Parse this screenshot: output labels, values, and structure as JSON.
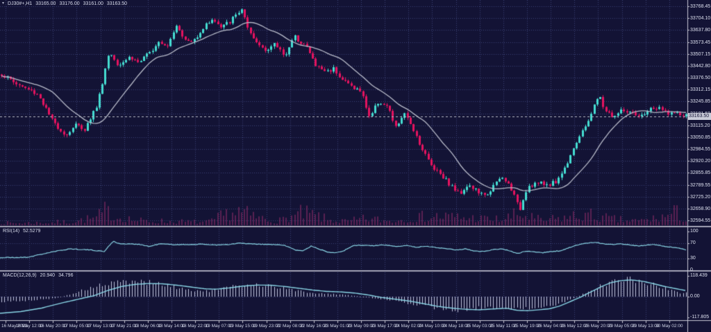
{
  "header": {
    "symbol_timeframe": "DJ30#+,H1",
    "open": "33165.00",
    "high": "33176.00",
    "low": "33161.00",
    "close": "33163.50"
  },
  "colors": {
    "background": "#131335",
    "grid": "#3d4277",
    "separator": "#c9c8d6",
    "up": "#45ddd2",
    "down": "#e4135f",
    "volume": "#a03070",
    "ma": "#b9bcca",
    "cyan": "#8ad6e6",
    "hist": "#c3c7e2",
    "text": "#dfe2ee",
    "price_tag_bg": "#c9cbd8"
  },
  "chart_data": {
    "type": "candlestick",
    "symbol": "DJ30#+",
    "timeframe": "H1",
    "indicators": [
      "Moving Average",
      "RSI(14)",
      "MACD(12,26,9)"
    ],
    "bars_estimated": 232,
    "price_axis": {
      "max": 33768.45,
      "min": 32594.55,
      "labels": [
        "33768.45",
        "33704.10",
        "33637.80",
        "33573.45",
        "33507.15",
        "33442.80",
        "33376.50",
        "33312.15",
        "33245.85",
        "33181.50",
        "33115.20",
        "33050.85",
        "32984.55",
        "32920.20",
        "32855.85",
        "32789.55",
        "32725.20",
        "32658.90",
        "32594.55"
      ],
      "current_price": "33163.50",
      "current_price_value": 33163.5
    },
    "time_axis": [
      "16 May 2023",
      "16 May 12:00",
      "16 May 20:00",
      "17 May 05:00",
      "17 May 13:00",
      "17 May 21:00",
      "18 May 06:00",
      "18 May 14:00",
      "18 May 22:00",
      "19 May 07:00",
      "19 May 15:00",
      "19 May 23:00",
      "22 May 08:00",
      "22 May 16:00",
      "23 May 01:00",
      "23 May 09:00",
      "23 May 17:00",
      "24 May 02:00",
      "24 May 10:00",
      "24 May 18:00",
      "25 May 03:00",
      "25 May 11:00",
      "25 May 19:00",
      "26 May 04:00",
      "26 May 12:00",
      "26 May 20:00",
      "29 May 05:00",
      "29 May 13:00",
      "30 May 02:00"
    ],
    "price_path_anchors": [
      [
        0,
        33400
      ],
      [
        25,
        33340
      ],
      [
        55,
        33285
      ],
      [
        75,
        33140
      ],
      [
        95,
        33060
      ],
      [
        108,
        33120
      ],
      [
        122,
        33095
      ],
      [
        140,
        33230
      ],
      [
        157,
        33520
      ],
      [
        170,
        33450
      ],
      [
        186,
        33490
      ],
      [
        200,
        33460
      ],
      [
        215,
        33510
      ],
      [
        228,
        33580
      ],
      [
        241,
        33555
      ],
      [
        255,
        33680
      ],
      [
        263,
        33590
      ],
      [
        276,
        33570
      ],
      [
        290,
        33640
      ],
      [
        305,
        33700
      ],
      [
        318,
        33650
      ],
      [
        331,
        33685
      ],
      [
        348,
        33755
      ],
      [
        358,
        33620
      ],
      [
        371,
        33560
      ],
      [
        385,
        33530
      ],
      [
        396,
        33560
      ],
      [
        410,
        33500
      ],
      [
        424,
        33600
      ],
      [
        440,
        33555
      ],
      [
        455,
        33440
      ],
      [
        470,
        33410
      ],
      [
        481,
        33430
      ],
      [
        492,
        33370
      ],
      [
        506,
        33330
      ],
      [
        520,
        33300
      ],
      [
        532,
        33160
      ],
      [
        545,
        33250
      ],
      [
        558,
        33215
      ],
      [
        570,
        33100
      ],
      [
        581,
        33180
      ],
      [
        593,
        33115
      ],
      [
        606,
        33000
      ],
      [
        620,
        32900
      ],
      [
        635,
        32850
      ],
      [
        648,
        32790
      ],
      [
        661,
        32740
      ],
      [
        673,
        32790
      ],
      [
        685,
        32760
      ],
      [
        698,
        32725
      ],
      [
        710,
        32780
      ],
      [
        722,
        32830
      ],
      [
        735,
        32780
      ],
      [
        748,
        32650
      ],
      [
        759,
        32780
      ],
      [
        772,
        32800
      ],
      [
        786,
        32790
      ],
      [
        800,
        32805
      ],
      [
        813,
        32880
      ],
      [
        826,
        33000
      ],
      [
        839,
        33080
      ],
      [
        851,
        33180
      ],
      [
        862,
        33280
      ],
      [
        871,
        33200
      ],
      [
        883,
        33160
      ],
      [
        896,
        33200
      ],
      [
        909,
        33180
      ],
      [
        921,
        33155
      ],
      [
        933,
        33200
      ],
      [
        946,
        33210
      ],
      [
        958,
        33190
      ],
      [
        971,
        33180
      ],
      [
        989,
        33163.5
      ]
    ],
    "volume_envelope": [
      [
        0,
        6
      ],
      [
        60,
        7
      ],
      [
        100,
        9
      ],
      [
        140,
        20
      ],
      [
        152,
        38
      ],
      [
        165,
        25
      ],
      [
        200,
        12
      ],
      [
        250,
        10
      ],
      [
        300,
        8
      ],
      [
        340,
        40
      ],
      [
        360,
        26
      ],
      [
        400,
        10
      ],
      [
        430,
        30
      ],
      [
        452,
        28
      ],
      [
        470,
        15
      ],
      [
        500,
        10
      ],
      [
        530,
        18
      ],
      [
        560,
        12
      ],
      [
        600,
        20
      ],
      [
        630,
        25
      ],
      [
        660,
        22
      ],
      [
        690,
        18
      ],
      [
        720,
        15
      ],
      [
        750,
        30
      ],
      [
        780,
        12
      ],
      [
        810,
        20
      ],
      [
        840,
        28
      ],
      [
        862,
        22
      ],
      [
        890,
        14
      ],
      [
        920,
        12
      ],
      [
        950,
        20
      ],
      [
        972,
        34
      ],
      [
        988,
        16
      ]
    ],
    "rsi": {
      "label": "RSI(14)",
      "value": "52.5279",
      "range": [
        0,
        100
      ],
      "levels": [
        70,
        30
      ],
      "ticks": [
        "100",
        "70",
        "30",
        "0"
      ],
      "tick_values": [
        100,
        70,
        30,
        0
      ],
      "anchors": [
        [
          0,
          32
        ],
        [
          40,
          33
        ],
        [
          70,
          45
        ],
        [
          100,
          55
        ],
        [
          130,
          52
        ],
        [
          150,
          48
        ],
        [
          163,
          75
        ],
        [
          172,
          68
        ],
        [
          200,
          67
        ],
        [
          215,
          61
        ],
        [
          230,
          68
        ],
        [
          250,
          66
        ],
        [
          270,
          66
        ],
        [
          290,
          67
        ],
        [
          312,
          65
        ],
        [
          330,
          66
        ],
        [
          345,
          70
        ],
        [
          357,
          68
        ],
        [
          370,
          67
        ],
        [
          395,
          66
        ],
        [
          410,
          64
        ],
        [
          425,
          52
        ],
        [
          437,
          50
        ],
        [
          448,
          62
        ],
        [
          460,
          54
        ],
        [
          472,
          47
        ],
        [
          483,
          45
        ],
        [
          495,
          50
        ],
        [
          510,
          64
        ],
        [
          525,
          64
        ],
        [
          540,
          63
        ],
        [
          555,
          65
        ],
        [
          570,
          61
        ],
        [
          585,
          64
        ],
        [
          600,
          59
        ],
        [
          615,
          62
        ],
        [
          630,
          58
        ],
        [
          645,
          55
        ],
        [
          658,
          52
        ],
        [
          670,
          55
        ],
        [
          682,
          50
        ],
        [
          695,
          48
        ],
        [
          708,
          52
        ],
        [
          720,
          55
        ],
        [
          733,
          51
        ],
        [
          745,
          42
        ],
        [
          757,
          49
        ],
        [
          770,
          47
        ],
        [
          782,
          45
        ],
        [
          795,
          48
        ],
        [
          808,
          50
        ],
        [
          820,
          58
        ],
        [
          832,
          65
        ],
        [
          845,
          70
        ],
        [
          858,
          72
        ],
        [
          870,
          68
        ],
        [
          882,
          66
        ],
        [
          895,
          68
        ],
        [
          908,
          65
        ],
        [
          920,
          62
        ],
        [
          933,
          65
        ],
        [
          945,
          66
        ],
        [
          958,
          61
        ],
        [
          970,
          59
        ],
        [
          988,
          52.5
        ]
      ]
    },
    "macd": {
      "label": "MACD(12,26,9)",
      "main_value": "20.940",
      "signal_value": "34.796",
      "ticks": [
        "118.439",
        "0.00",
        "-117.805"
      ],
      "tick_values": [
        118.439,
        0,
        -117.805
      ],
      "line_anchors": [
        [
          0,
          -95
        ],
        [
          30,
          -85
        ],
        [
          60,
          -65
        ],
        [
          90,
          -35
        ],
        [
          120,
          -8
        ],
        [
          135,
          5
        ],
        [
          155,
          35
        ],
        [
          175,
          58
        ],
        [
          195,
          70
        ],
        [
          215,
          75
        ],
        [
          235,
          73
        ],
        [
          255,
          65
        ],
        [
          275,
          55
        ],
        [
          295,
          45
        ],
        [
          310,
          42
        ],
        [
          330,
          50
        ],
        [
          350,
          60
        ],
        [
          370,
          66
        ],
        [
          390,
          65
        ],
        [
          410,
          58
        ],
        [
          430,
          48
        ],
        [
          450,
          38
        ],
        [
          470,
          30
        ],
        [
          490,
          27
        ],
        [
          510,
          21
        ],
        [
          530,
          10
        ],
        [
          550,
          -5
        ],
        [
          570,
          -15
        ],
        [
          590,
          -25
        ],
        [
          610,
          -40
        ],
        [
          630,
          -55
        ],
        [
          650,
          -65
        ],
        [
          670,
          -72
        ],
        [
          690,
          -75
        ],
        [
          710,
          -70
        ],
        [
          730,
          -66
        ],
        [
          745,
          -78
        ],
        [
          760,
          -80
        ],
        [
          775,
          -75
        ],
        [
          790,
          -70
        ],
        [
          805,
          -55
        ],
        [
          820,
          -30
        ],
        [
          835,
          -5
        ],
        [
          850,
          25
        ],
        [
          865,
          55
        ],
        [
          880,
          80
        ],
        [
          895,
          92
        ],
        [
          910,
          95
        ],
        [
          925,
          88
        ],
        [
          940,
          75
        ],
        [
          955,
          60
        ],
        [
          970,
          48
        ],
        [
          988,
          34.8
        ]
      ],
      "hist_anchors": [
        [
          0,
          -30
        ],
        [
          20,
          -26
        ],
        [
          40,
          -22
        ],
        [
          60,
          -16
        ],
        [
          80,
          -8
        ],
        [
          100,
          12
        ],
        [
          120,
          38
        ],
        [
          140,
          60
        ],
        [
          160,
          76
        ],
        [
          180,
          86
        ],
        [
          200,
          88
        ],
        [
          220,
          79
        ],
        [
          240,
          64
        ],
        [
          260,
          48
        ],
        [
          280,
          35
        ],
        [
          300,
          31
        ],
        [
          320,
          46
        ],
        [
          340,
          60
        ],
        [
          360,
          70
        ],
        [
          380,
          67
        ],
        [
          400,
          54
        ],
        [
          420,
          40
        ],
        [
          440,
          26
        ],
        [
          460,
          18
        ],
        [
          480,
          15
        ],
        [
          500,
          10
        ],
        [
          520,
          0
        ],
        [
          540,
          -10
        ],
        [
          560,
          -20
        ],
        [
          580,
          -31
        ],
        [
          600,
          -46
        ],
        [
          620,
          -60
        ],
        [
          640,
          -70
        ],
        [
          660,
          -75
        ],
        [
          680,
          -71
        ],
        [
          700,
          -64
        ],
        [
          720,
          -60
        ],
        [
          740,
          -74
        ],
        [
          760,
          -71
        ],
        [
          780,
          -64
        ],
        [
          800,
          -48
        ],
        [
          820,
          -18
        ],
        [
          840,
          16
        ],
        [
          860,
          52
        ],
        [
          880,
          86
        ],
        [
          900,
          100
        ],
        [
          920,
          90
        ],
        [
          940,
          68
        ],
        [
          960,
          44
        ],
        [
          980,
          21
        ]
      ]
    }
  }
}
